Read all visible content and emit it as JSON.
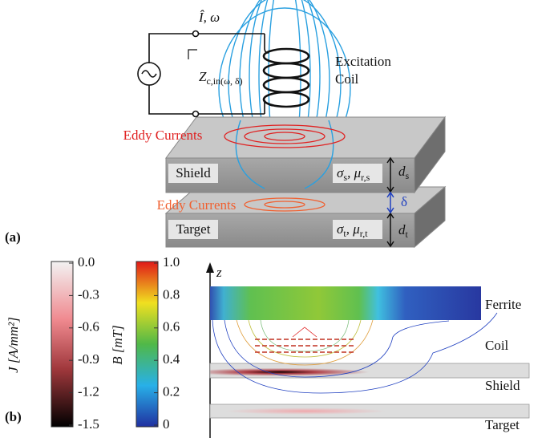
{
  "panel_a": {
    "label": "(a)",
    "source": {
      "current": "Î, ω",
      "impedance": [
        {
          "text": "Z"
        },
        {
          "sub": "c,in(ω, δ)"
        }
      ]
    },
    "coil": {
      "label_line1": "Excitation",
      "label_line2": "Coil"
    },
    "shield": {
      "label": "Shield",
      "eddy": "Eddy Currents",
      "props": [
        {
          "text": "σ"
        },
        {
          "sub": "s"
        },
        {
          "text": ", μ"
        },
        {
          "sub": "r,s"
        }
      ],
      "thickness": [
        {
          "text": "d"
        },
        {
          "sub": "s"
        }
      ]
    },
    "gap": "δ",
    "target": {
      "label": "Target",
      "eddy": "Eddy Currents",
      "props": [
        {
          "text": "σ"
        },
        {
          "sub": "t"
        },
        {
          "text": ", μ"
        },
        {
          "sub": "r,t"
        }
      ],
      "thickness": [
        {
          "text": "d"
        },
        {
          "sub": "t"
        }
      ]
    }
  },
  "panel_b": {
    "label": "(b)",
    "colorbar_j": {
      "title": "J [A/mm²]",
      "ticks": [
        "0.0",
        "-0.3",
        "-0.6",
        "-0.9",
        "-1.2",
        "-1.5"
      ]
    },
    "colorbar_b": {
      "title": "B [mT]",
      "ticks": [
        "1.0",
        "0.8",
        "0.6",
        "0.4",
        "0.2",
        "0"
      ]
    },
    "axis": "z",
    "regions": [
      "Ferrite",
      "Coil",
      "Shield",
      "Target"
    ]
  }
}
